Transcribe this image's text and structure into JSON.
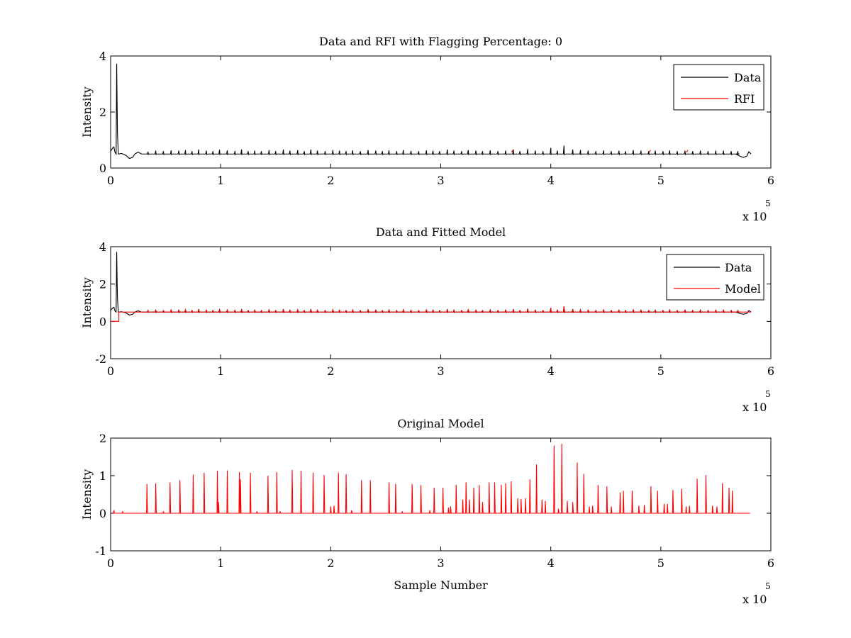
{
  "chart_data": [
    {
      "type": "line",
      "title": "Data and RFI with Flagging Percentage: 0",
      "xlabel": "",
      "ylabel": "Intensity",
      "xlim": [
        0,
        600000
      ],
      "ylim": [
        0,
        4
      ],
      "xticks": [
        0,
        1,
        2,
        3,
        4,
        5,
        6
      ],
      "yticks": [
        0,
        2,
        4
      ],
      "x_exponent": {
        "base": "x 10",
        "power": "5"
      },
      "legend": {
        "position": "top-right",
        "entries": [
          "Data",
          "RFI"
        ]
      },
      "grid": false,
      "series": [
        {
          "name": "Data",
          "color": "#000000",
          "baseline": 0.5,
          "start_shape": [
            [
              0,
              0.6
            ],
            [
              2000,
              0.72
            ],
            [
              3000,
              0.75
            ],
            [
              4000,
              0.55
            ],
            [
              5000,
              0.5
            ],
            [
              5500,
              3.72
            ],
            [
              6200,
              1.25
            ],
            [
              7000,
              0.5
            ],
            [
              10000,
              0.52
            ],
            [
              14000,
              0.45
            ],
            [
              17000,
              0.34
            ],
            [
              20000,
              0.38
            ],
            [
              22000,
              0.5
            ],
            [
              25000,
              0.57
            ],
            [
              28000,
              0.5
            ]
          ],
          "end_shape": [
            [
              568000,
              0.5
            ],
            [
              572000,
              0.42
            ],
            [
              575000,
              0.38
            ],
            [
              578000,
              0.42
            ],
            [
              580000,
              0.58
            ],
            [
              582000,
              0.5
            ]
          ],
          "spikes_x_1e5": [
            0.34,
            0.41,
            0.48,
            0.55,
            0.62,
            0.68,
            0.74,
            0.8,
            0.87,
            0.93,
            0.99,
            1.06,
            1.13,
            1.19,
            1.25,
            1.31,
            1.37,
            1.44,
            1.5,
            1.57,
            1.63,
            1.7,
            1.76,
            1.82,
            1.88,
            1.95,
            2.02,
            2.08,
            2.14,
            2.2,
            2.27,
            2.34,
            2.41,
            2.47,
            2.53,
            2.6,
            2.66,
            2.73,
            2.8,
            2.87,
            2.93,
            2.99,
            3.06,
            3.12,
            3.19,
            3.25,
            3.32,
            3.38,
            3.45,
            3.52,
            3.59,
            3.66,
            3.72,
            3.79,
            3.86,
            3.93,
            4.0,
            4.06,
            4.12,
            4.2,
            4.27,
            4.34,
            4.41,
            4.48,
            4.55,
            4.62,
            4.68,
            4.75,
            4.82,
            4.89,
            4.95,
            5.02,
            5.08,
            5.15,
            5.22,
            5.29,
            5.36,
            5.43,
            5.5,
            5.57,
            5.64,
            5.7
          ],
          "spike_heights": [
            0.58,
            0.62,
            0.6,
            0.63,
            0.62,
            0.64,
            0.6,
            0.66,
            0.62,
            0.6,
            0.65,
            0.63,
            0.61,
            0.66,
            0.6,
            0.62,
            0.6,
            0.64,
            0.6,
            0.66,
            0.62,
            0.64,
            0.6,
            0.66,
            0.62,
            0.6,
            0.64,
            0.62,
            0.6,
            0.63,
            0.6,
            0.64,
            0.62,
            0.6,
            0.63,
            0.6,
            0.64,
            0.61,
            0.6,
            0.63,
            0.62,
            0.6,
            0.66,
            0.62,
            0.6,
            0.64,
            0.62,
            0.6,
            0.63,
            0.6,
            0.62,
            0.66,
            0.6,
            0.68,
            0.62,
            0.6,
            0.72,
            0.62,
            0.8,
            0.66,
            0.64,
            0.62,
            0.6,
            0.63,
            0.6,
            0.62,
            0.6,
            0.64,
            0.62,
            0.6,
            0.62,
            0.6,
            0.63,
            0.6,
            0.62,
            0.6,
            0.62,
            0.6,
            0.62,
            0.62,
            0.6,
            0.6
          ]
        },
        {
          "name": "RFI",
          "color": "#ff0000",
          "points": [
            [
              365000,
              0.56
            ],
            [
              490000,
              0.56
            ],
            [
              524000,
              0.56
            ]
          ]
        }
      ]
    },
    {
      "type": "line",
      "title": "Data and Fitted Model",
      "xlabel": "",
      "ylabel": "Intensity",
      "xlim": [
        0,
        600000
      ],
      "ylim": [
        -2,
        4
      ],
      "xticks": [
        0,
        1,
        2,
        3,
        4,
        5,
        6
      ],
      "yticks": [
        -2,
        0,
        2,
        4
      ],
      "x_exponent": {
        "base": "x 10",
        "power": "5"
      },
      "legend": {
        "position": "top-right",
        "entries": [
          "Data",
          "Model"
        ]
      },
      "grid": false,
      "series": [
        {
          "name": "Data",
          "color": "#000000",
          "same_as": "panel1.Data"
        },
        {
          "name": "Model",
          "color": "#ff0000",
          "pre_step": [
            [
              0,
              0.0
            ],
            [
              7500,
              0.0
            ],
            [
              7500,
              0.5
            ]
          ],
          "baseline": 0.5
        }
      ]
    },
    {
      "type": "line",
      "title": "Original Model",
      "xlabel": "Sample Number",
      "ylabel": "Intensity",
      "xlim": [
        0,
        600000
      ],
      "ylim": [
        -1,
        2
      ],
      "xticks": [
        0,
        1,
        2,
        3,
        4,
        5,
        6
      ],
      "yticks": [
        -1,
        0,
        1,
        2
      ],
      "x_exponent": {
        "base": "x 10",
        "power": "5"
      },
      "legend": null,
      "grid": false,
      "series": [
        {
          "name": "Model",
          "color": "#ff0000",
          "baseline": 0.0,
          "x_range_1e5": [
            0.02,
            5.81
          ],
          "peaks": [
            [
              0.03,
              0.08
            ],
            [
              0.11,
              0.05
            ],
            [
              0.33,
              0.78
            ],
            [
              0.41,
              0.8
            ],
            [
              0.48,
              0.05
            ],
            [
              0.54,
              0.82
            ],
            [
              0.63,
              0.88
            ],
            [
              0.75,
              1.03
            ],
            [
              0.85,
              1.08
            ],
            [
              0.97,
              1.13
            ],
            [
              0.98,
              0.3
            ],
            [
              1.06,
              1.14
            ],
            [
              1.17,
              1.1
            ],
            [
              1.18,
              0.9
            ],
            [
              1.27,
              1.08
            ],
            [
              1.33,
              0.05
            ],
            [
              1.43,
              1.0
            ],
            [
              1.51,
              1.1
            ],
            [
              1.54,
              0.05
            ],
            [
              1.65,
              1.15
            ],
            [
              1.73,
              1.13
            ],
            [
              1.84,
              1.08
            ],
            [
              1.94,
              1.02
            ],
            [
              2.0,
              0.18
            ],
            [
              2.03,
              0.2
            ],
            [
              2.07,
              1.08
            ],
            [
              2.14,
              1.04
            ],
            [
              2.19,
              0.08
            ],
            [
              2.28,
              0.88
            ],
            [
              2.36,
              0.88
            ],
            [
              2.53,
              0.82
            ],
            [
              2.59,
              0.78
            ],
            [
              2.65,
              0.05
            ],
            [
              2.74,
              0.78
            ],
            [
              2.82,
              0.75
            ],
            [
              2.9,
              0.08
            ],
            [
              2.94,
              0.68
            ],
            [
              3.02,
              0.68
            ],
            [
              3.07,
              0.15
            ],
            [
              3.09,
              0.18
            ],
            [
              3.14,
              0.76
            ],
            [
              3.2,
              0.36
            ],
            [
              3.23,
              0.82
            ],
            [
              3.26,
              0.36
            ],
            [
              3.3,
              0.68
            ],
            [
              3.35,
              0.75
            ],
            [
              3.38,
              0.3
            ],
            [
              3.44,
              0.82
            ],
            [
              3.49,
              0.82
            ],
            [
              3.55,
              0.76
            ],
            [
              3.59,
              0.8
            ],
            [
              3.64,
              0.85
            ],
            [
              3.7,
              0.4
            ],
            [
              3.73,
              0.38
            ],
            [
              3.77,
              0.4
            ],
            [
              3.81,
              0.9
            ],
            [
              3.87,
              1.3
            ],
            [
              3.92,
              0.36
            ],
            [
              3.95,
              0.33
            ],
            [
              4.03,
              1.8
            ],
            [
              4.07,
              0.12
            ],
            [
              4.1,
              1.85
            ],
            [
              4.15,
              0.33
            ],
            [
              4.2,
              0.3
            ],
            [
              4.24,
              1.35
            ],
            [
              4.3,
              1.05
            ],
            [
              4.35,
              0.18
            ],
            [
              4.38,
              0.2
            ],
            [
              4.43,
              0.75
            ],
            [
              4.51,
              0.72
            ],
            [
              4.55,
              0.18
            ],
            [
              4.63,
              0.55
            ],
            [
              4.66,
              0.6
            ],
            [
              4.74,
              0.6
            ],
            [
              4.8,
              0.2
            ],
            [
              4.85,
              0.22
            ],
            [
              4.91,
              0.72
            ],
            [
              4.97,
              0.6
            ],
            [
              5.03,
              0.25
            ],
            [
              5.06,
              0.25
            ],
            [
              5.11,
              0.62
            ],
            [
              5.19,
              0.65
            ],
            [
              5.23,
              0.18
            ],
            [
              5.26,
              0.2
            ],
            [
              5.33,
              0.92
            ],
            [
              5.41,
              1.02
            ],
            [
              5.47,
              0.2
            ],
            [
              5.51,
              0.18
            ],
            [
              5.56,
              0.8
            ],
            [
              5.62,
              0.68
            ],
            [
              5.65,
              0.6
            ]
          ]
        }
      ]
    }
  ]
}
